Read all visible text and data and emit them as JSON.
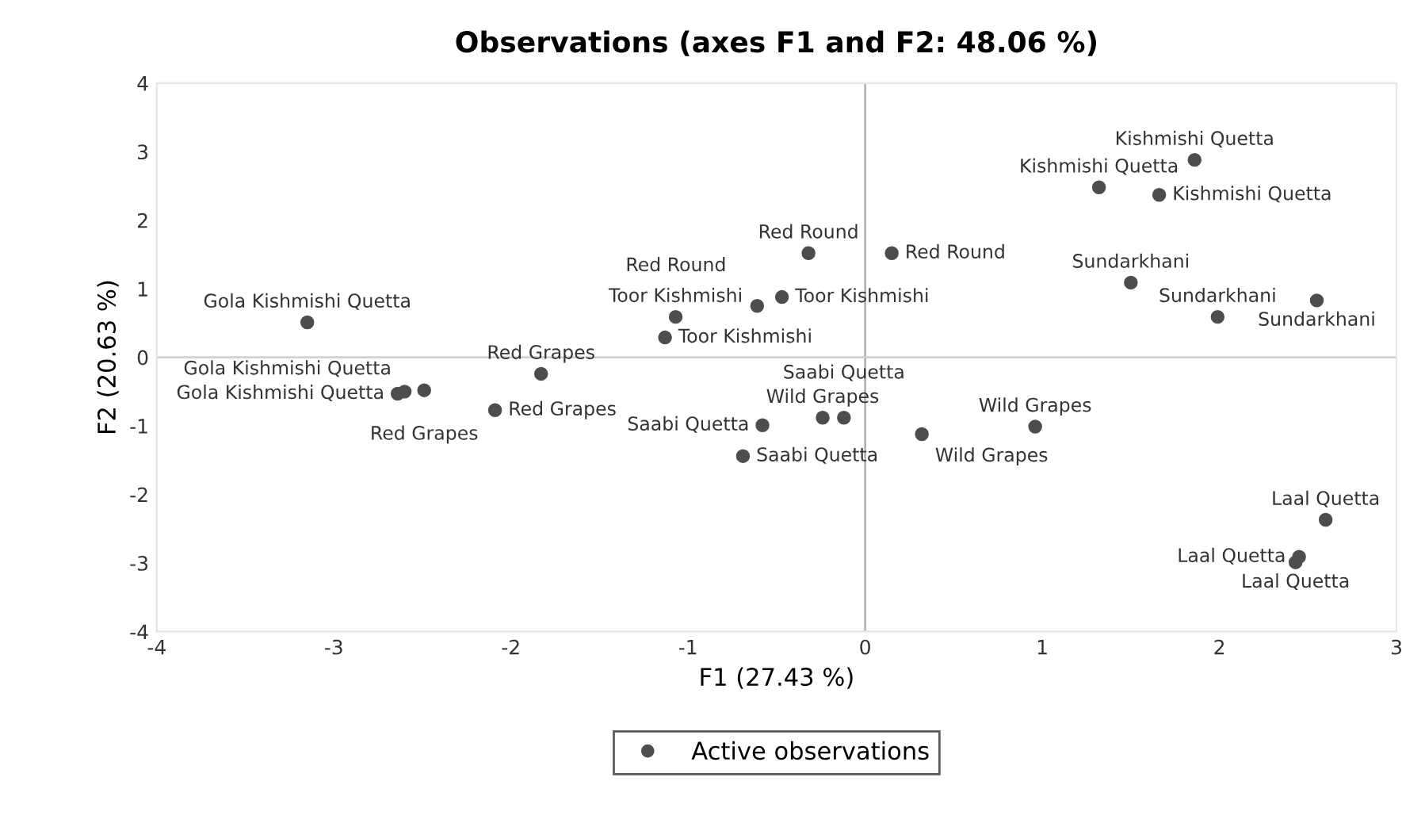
{
  "chart_data": {
    "type": "scatter",
    "title": "Observations (axes F1 and F2: 48.06 %)",
    "xlabel": "F1 (27.43 %)",
    "ylabel": "F2 (20.63 %)",
    "xlim": [
      -4,
      3
    ],
    "xticks": [
      -4,
      -3,
      -2,
      -1,
      0,
      1,
      2,
      3
    ],
    "ylim": [
      -4,
      4
    ],
    "yticks": [
      -4,
      -3,
      -2,
      -1,
      0,
      1,
      2,
      3,
      4
    ],
    "grid": false,
    "legend": "bottom",
    "marker": "circle",
    "ref_lines": [
      {
        "axis": "x",
        "value": 0,
        "color": "#b4b4b4"
      },
      {
        "axis": "y",
        "value": 0,
        "color": "#d2d2d2"
      }
    ],
    "series": [
      {
        "name": "Active observations",
        "color": "#4d4d4d",
        "x": [
          -3.15,
          -2.64,
          -2.6,
          -2.49,
          -2.09,
          -1.83,
          -1.07,
          -1.13,
          -0.32,
          -0.61,
          -0.47,
          0.15,
          -0.58,
          -0.69,
          -0.24,
          -0.12,
          0.32,
          0.96,
          1.32,
          1.66,
          1.86,
          1.5,
          1.99,
          2.55,
          2.6,
          2.45,
          2.43
        ],
        "values": [
          0.51,
          -0.53,
          -0.5,
          -0.48,
          -0.77,
          -0.24,
          0.59,
          0.29,
          1.52,
          0.75,
          0.88,
          1.52,
          -0.99,
          -1.44,
          -0.88,
          -0.88,
          -1.12,
          -1.01,
          2.48,
          2.37,
          2.88,
          1.09,
          0.59,
          0.83,
          -2.37,
          -2.91,
          -2.99
        ]
      }
    ],
    "annotations": [
      {
        "text": "Gola Kishmishi Quetta",
        "x": -3.15,
        "y": 0.51
      },
      {
        "text": "Gola Kishmishi Quetta",
        "x": -2.64,
        "y": -0.53
      },
      {
        "text": "Gola Kishmishi Quetta",
        "x": -2.6,
        "y": -0.5
      },
      {
        "text": "Red Grapes",
        "x": -2.49,
        "y": -0.48
      },
      {
        "text": "Red Grapes",
        "x": -2.09,
        "y": -0.77
      },
      {
        "text": "Red Grapes",
        "x": -1.83,
        "y": -0.24
      },
      {
        "text": "Toor Kishmishi",
        "x": -1.07,
        "y": 0.59
      },
      {
        "text": "Toor Kishmishi",
        "x": -1.13,
        "y": 0.29
      },
      {
        "text": "Red Round",
        "x": -0.32,
        "y": 1.52
      },
      {
        "text": "Red Round",
        "x": -0.61,
        "y": 0.75
      },
      {
        "text": "Toor Kishmishi",
        "x": -0.47,
        "y": 0.88
      },
      {
        "text": "Red Round",
        "x": 0.15,
        "y": 1.52
      },
      {
        "text": "Saabi Quetta",
        "x": -0.58,
        "y": -0.99
      },
      {
        "text": "Saabi Quetta",
        "x": -0.69,
        "y": -1.44
      },
      {
        "text": "Wild Grapes",
        "x": -0.24,
        "y": -0.88
      },
      {
        "text": "Saabi Quetta",
        "x": -0.12,
        "y": -0.88
      },
      {
        "text": "Wild Grapes",
        "x": 0.32,
        "y": -1.12
      },
      {
        "text": "Wild Grapes",
        "x": 0.96,
        "y": -1.01
      },
      {
        "text": "Kishmishi Quetta",
        "x": 1.32,
        "y": 2.48
      },
      {
        "text": "Kishmishi Quetta",
        "x": 1.66,
        "y": 2.37
      },
      {
        "text": "Kishmishi Quetta",
        "x": 1.86,
        "y": 2.88
      },
      {
        "text": "Sundarkhani",
        "x": 1.5,
        "y": 1.09
      },
      {
        "text": "Sundarkhani",
        "x": 1.99,
        "y": 0.59
      },
      {
        "text": "Sundarkhani",
        "x": 2.55,
        "y": 0.83
      },
      {
        "text": "Laal Quetta",
        "x": 2.6,
        "y": -2.37
      },
      {
        "text": "Laal Quetta",
        "x": 2.45,
        "y": -2.91
      },
      {
        "text": "Laal Quetta",
        "x": 2.43,
        "y": -2.99
      }
    ]
  }
}
